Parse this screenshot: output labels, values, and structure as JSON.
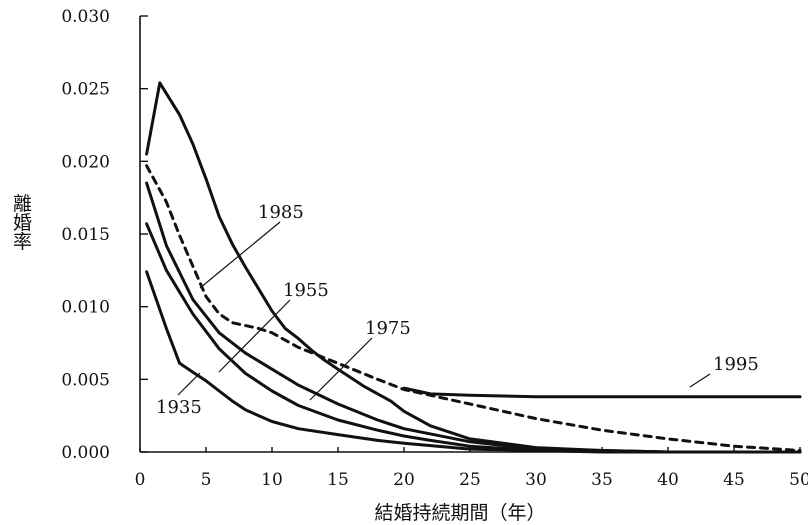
{
  "chart_data": {
    "type": "line",
    "title": "",
    "xlabel": "結婚持続期間（年）",
    "ylabel": "離婚率",
    "xlim": [
      0,
      50
    ],
    "ylim": [
      0,
      0.03
    ],
    "x_ticks": [
      "0",
      "5",
      "10",
      "15",
      "20",
      "25",
      "30",
      "35",
      "40",
      "45",
      "50"
    ],
    "y_ticks": [
      "0.000",
      "0.005",
      "0.010",
      "0.015",
      "0.020",
      "0.025",
      "0.030"
    ],
    "grid": false,
    "legend": "none (series labeled directly on the chart)",
    "series": [
      {
        "name": "1985",
        "style": "solid",
        "x": [
          0.5,
          1.5,
          3,
          4,
          5,
          6,
          7,
          8,
          9,
          10,
          11,
          12,
          13,
          14,
          15,
          17,
          19,
          20,
          22,
          25,
          30,
          35,
          40,
          45,
          50
        ],
        "y": [
          0.0205,
          0.0254,
          0.0232,
          0.0212,
          0.0188,
          0.0162,
          0.0143,
          0.0127,
          0.0112,
          0.0097,
          0.0085,
          0.0078,
          0.007,
          0.0063,
          0.0057,
          0.0045,
          0.0035,
          0.0028,
          0.0018,
          0.0009,
          0.0003,
          0.0001,
          0.0,
          0.0,
          0.0
        ]
      },
      {
        "name": "1995",
        "style": "dashed",
        "x": [
          0.5,
          2,
          3,
          4,
          5,
          6,
          7,
          9,
          10,
          12,
          15,
          18,
          20,
          25,
          30,
          35,
          40,
          45,
          50
        ],
        "y": [
          0.0197,
          0.0172,
          0.0149,
          0.0128,
          0.0107,
          0.0095,
          0.0089,
          0.0085,
          0.0082,
          0.0072,
          0.0061,
          0.005,
          0.0043,
          0.0033,
          0.0023,
          0.0015,
          0.0009,
          0.0004,
          0.0001
        ]
      },
      {
        "name": "1955",
        "style": "solid",
        "x": [
          0.5,
          2,
          4,
          6,
          8,
          10,
          12,
          15,
          18,
          20,
          25,
          30,
          35,
          40,
          45,
          50
        ],
        "y": [
          0.0185,
          0.0142,
          0.0105,
          0.0082,
          0.0068,
          0.0057,
          0.0046,
          0.0033,
          0.0022,
          0.0016,
          0.0007,
          0.0002,
          0.0001,
          0.0,
          0.0,
          0.0
        ]
      },
      {
        "name": "1975",
        "style": "solid",
        "x": [
          0.5,
          2,
          4,
          6,
          8,
          10,
          12,
          15,
          18,
          20,
          22,
          25,
          30,
          40,
          50
        ],
        "y": [
          0.0157,
          0.0125,
          0.0095,
          0.0071,
          0.0054,
          0.0042,
          0.0032,
          0.0022,
          0.0015,
          0.0011,
          0.0008,
          0.0004,
          0.0001,
          0.0,
          0.0
        ]
      },
      {
        "name": "1935",
        "style": "solid",
        "x": [
          0.5,
          2,
          3,
          4,
          5,
          6,
          7,
          8,
          9,
          10,
          12,
          15,
          18,
          20,
          25,
          30,
          35,
          40,
          45,
          50
        ],
        "y": [
          0.0124,
          0.0085,
          0.0061,
          0.0055,
          0.0049,
          0.0042,
          0.0035,
          0.0029,
          0.0025,
          0.0021,
          0.0016,
          0.0012,
          0.0008,
          0.0006,
          0.0002,
          0.0001,
          0.0,
          0.0,
          0.0,
          0.0
        ]
      },
      {
        "name": "1995",
        "style": "solid",
        "x": [
          20,
          22,
          25,
          30,
          35,
          40,
          45,
          50
        ],
        "y": [
          0.0044,
          0.004,
          0.0039,
          0.0038,
          0.0038,
          0.0038,
          0.0038,
          0.0038
        ]
      }
    ],
    "annotations": [
      {
        "text": "1985"
      },
      {
        "text": "1955"
      },
      {
        "text": "1975"
      },
      {
        "text": "1995"
      },
      {
        "text": "1935"
      }
    ]
  }
}
